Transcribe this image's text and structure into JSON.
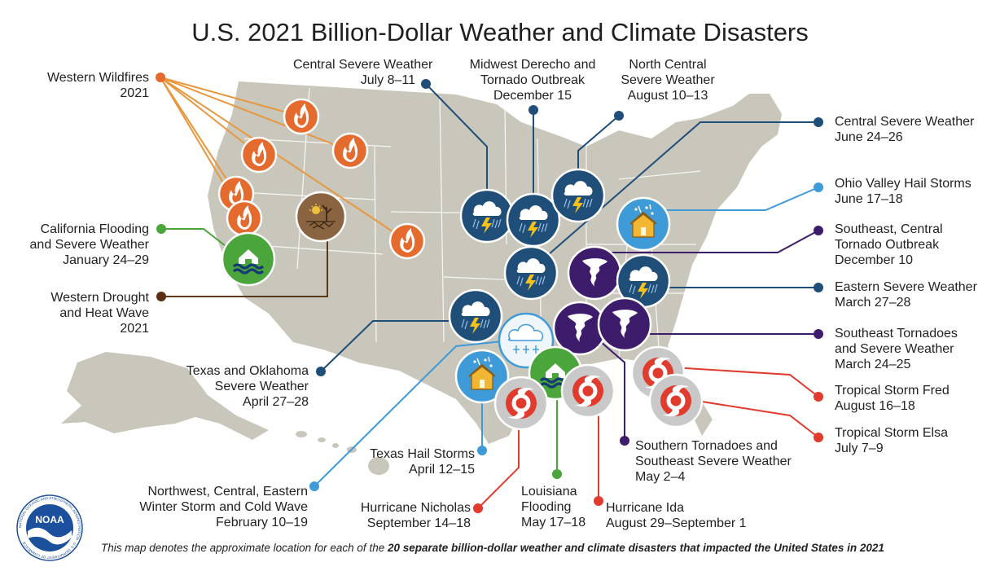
{
  "title": "U.S. 2021 Billion-Dollar Weather and Climate Disasters",
  "footer": {
    "prefix": "This map denotes the approximate location for each of the ",
    "bold": "20 separate billion-dollar weather and climate disasters that impacted the United States in 2021"
  },
  "logo": {
    "text": "NOAA",
    "ring": "NATIONAL OCEANIC AND ATMOSPHERIC ADMINISTRATION · U.S. DEPARTMENT OF COMMERCE"
  },
  "colors": {
    "land": "#c9c6bb",
    "state_border": "#ffffff",
    "wildfire": "#e56a2d",
    "drought": "#8a6441",
    "flooding": "#4aa53a",
    "severe_storm": "#1f4e79",
    "hail": "#3f9ad8",
    "tornado": "#3d1c6b",
    "tropical": "#e03b2c",
    "winter": "#3f9ad8"
  },
  "labels": {
    "western_wildfires": [
      "Western Wildfires",
      "2021"
    ],
    "california_flooding": [
      "California Flooding",
      "and Severe Weather",
      "January 24–29"
    ],
    "western_drought": [
      "Western Drought",
      "and Heat Wave",
      "2021"
    ],
    "texas_oklahoma": [
      "Texas and Oklahoma",
      "Severe Weather",
      "April 27–28"
    ],
    "nw_winter": [
      "Northwest, Central, Eastern",
      "Winter Storm and Cold Wave",
      "February 10–19"
    ],
    "texas_hail": [
      "Texas Hail Storms",
      "April 12–15"
    ],
    "hurricane_nicholas": [
      "Hurricane Nicholas",
      "September 14–18"
    ],
    "louisiana_flooding": [
      "Louisiana",
      "Flooding",
      "May 17–18"
    ],
    "hurricane_ida": [
      "Hurricane Ida",
      "August 29–September 1"
    ],
    "southern_tornadoes": [
      "Southern Tornadoes and",
      "Southeast Severe Weather",
      "May 2–4"
    ],
    "central_severe_july": [
      "Central Severe Weather",
      "July 8–11"
    ],
    "midwest_derecho": [
      "Midwest Derecho and",
      "Tornado Outbreak",
      "December 15"
    ],
    "north_central": [
      "North Central",
      "Severe Weather",
      "August 10–13"
    ],
    "central_severe_june": [
      "Central Severe Weather",
      "June 24–26"
    ],
    "ohio_valley_hail": [
      "Ohio Valley Hail Storms",
      "June 17–18"
    ],
    "se_central_tornado": [
      "Southeast, Central",
      "Tornado Outbreak",
      "December 10"
    ],
    "eastern_severe": [
      "Eastern Severe Weather",
      "March 27–28"
    ],
    "se_tornadoes": [
      "Southeast Tornadoes",
      "and Severe Weather",
      "March 24–25"
    ],
    "ts_fred": [
      "Tropical Storm Fred",
      "August 16–18"
    ],
    "ts_elsa": [
      "Tropical Storm Elsa",
      "July 7–9"
    ]
  }
}
